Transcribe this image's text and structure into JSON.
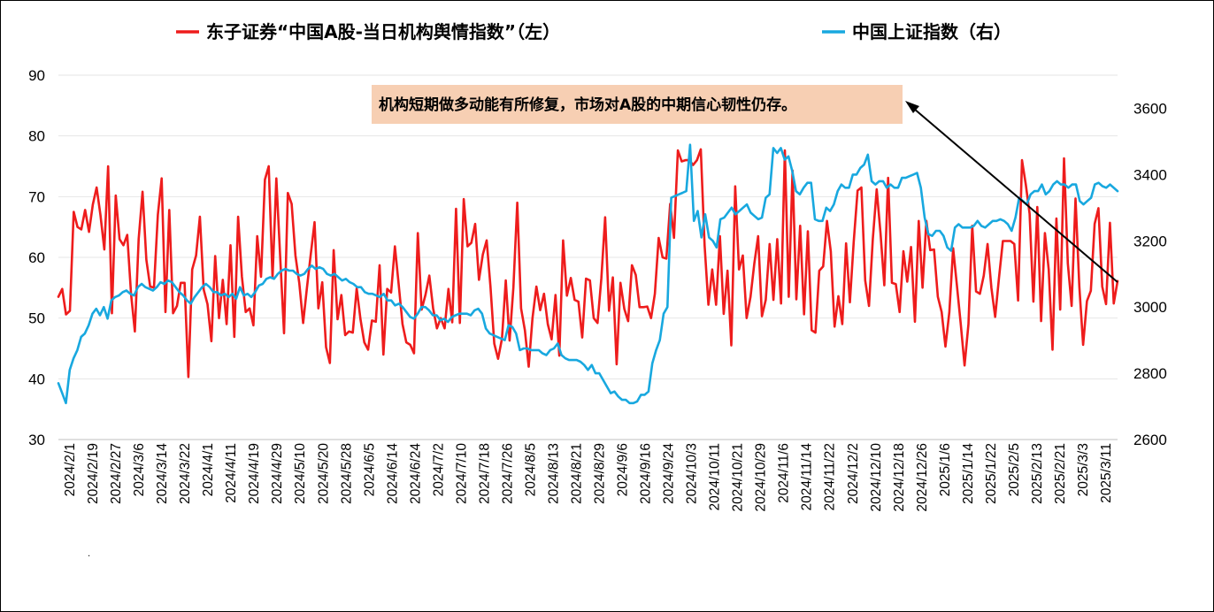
{
  "colors": {
    "sentiment": "#ee1c1c",
    "shanghai": "#18a8df",
    "annotation_bg": "#f7cfb3",
    "grid": "#e6e6e6"
  },
  "chart_data": {
    "type": "line",
    "title": "",
    "legend": {
      "position": "top",
      "entries": [
        "东子证券“中国A股-当日机构舆情指数”（左）",
        "中国上证指数（右）"
      ]
    },
    "x_tick_labels": [
      "2024/2/1",
      "2024/2/19",
      "2024/2/27",
      "2024/3/6",
      "2024/3/14",
      "2024/3/22",
      "2024/4/1",
      "2024/4/11",
      "2024/4/19",
      "2024/4/29",
      "2024/5/10",
      "2024/5/20",
      "2024/5/28",
      "2024/6/5",
      "2024/6/14",
      "2024/6/24",
      "2024/7/2",
      "2024/7/10",
      "2024/7/18",
      "2024/7/26",
      "2024/8/5",
      "2024/8/13",
      "2024/8/21",
      "2024/8/29",
      "2024/9/6",
      "2024/9/16",
      "2024/9/24",
      "2024/10/3",
      "2024/10/11",
      "2024/10/21",
      "2024/10/29",
      "2024/11/6",
      "2024/11/14",
      "2024/11/22",
      "2024/12/2",
      "2024/12/10",
      "2024/12/18",
      "2024/12/26",
      "2025/1/6",
      "2025/1/14",
      "2025/1/22",
      "2025/2/5",
      "2025/2/13",
      "2025/2/21",
      "2025/3/3",
      "2025/3/11"
    ],
    "y_left": {
      "min": 30,
      "max": 90,
      "ticks": [
        30,
        40,
        50,
        60,
        70,
        80,
        90
      ]
    },
    "y_right": {
      "min": 2600,
      "max": 3700,
      "ticks": [
        2600,
        2800,
        3000,
        3200,
        3400,
        3600
      ]
    },
    "grid": "horizontal",
    "series": [
      {
        "name": "东子证券“中国A股-当日机构舆情指数”（左）",
        "axis": "left",
        "values": [
          53.5,
          54.8,
          50.6,
          51.2,
          67.5,
          65.0,
          64.6,
          67.8,
          64.2,
          68.7,
          71.5,
          67.0,
          61.3,
          75.0,
          50.8,
          70.2,
          63.0,
          62.0,
          63.7,
          54.0,
          47.8,
          63.0,
          70.8,
          59.6,
          55.2,
          55.0,
          67.0,
          73.0,
          51.0,
          67.8,
          50.8,
          52.0,
          55.8,
          55.8,
          40.3,
          58.0,
          60.3,
          66.7,
          54.7,
          52.3,
          46.2,
          60.2,
          50.0,
          56.3,
          49.0,
          62.0,
          46.9,
          66.7,
          56.8,
          51.0,
          51.6,
          48.8,
          63.5,
          56.8,
          72.8,
          75.0,
          56.6,
          73.0,
          60.2,
          47.5,
          70.6,
          68.8,
          60.3,
          55.8,
          49.2,
          55.0,
          60.5,
          65.8,
          51.6,
          55.9,
          45.2,
          42.6,
          61.2,
          49.8,
          53.8,
          47.2,
          47.8,
          47.6,
          54.9,
          49.8,
          46.0,
          44.8,
          49.6,
          49.4,
          58.7,
          44.0,
          54.8,
          54.2,
          61.8,
          55.5,
          49.0,
          46.0,
          45.6,
          44.2,
          64.0,
          51.4,
          53.8,
          57.0,
          51.6,
          48.3,
          50.0,
          48.3,
          54.8,
          49.3,
          68.0,
          49.2,
          69.6,
          61.8,
          62.4,
          65.5,
          56.3,
          60.5,
          62.8,
          55.2,
          45.8,
          43.3,
          46.6,
          56.2,
          46.3,
          55.0,
          69.0,
          51.6,
          48.0,
          42.0,
          50.0,
          55.2,
          51.3,
          54.0,
          49.0,
          46.5,
          53.8,
          43.8,
          62.8,
          53.7,
          56.6,
          53.0,
          52.7,
          46.8,
          56.5,
          56.2,
          50.0,
          49.2,
          56.5,
          66.6,
          51.2,
          56.7,
          42.4,
          55.8,
          51.5,
          49.5,
          58.7,
          57.1,
          51.8,
          51.8,
          51.9,
          50.0,
          54.0,
          63.2,
          60.0,
          59.8,
          68.8,
          63.2,
          77.6,
          75.8,
          76.0,
          76.0,
          75.2,
          76.0,
          77.8,
          62.0,
          52.2,
          58.0,
          52.2,
          63.5,
          50.7,
          57.8,
          45.5,
          71.7,
          58.0,
          60.3,
          50.0,
          53.5,
          59.0,
          63.5,
          50.3,
          53.0,
          62.2,
          53.0,
          63.0,
          52.4,
          77.6,
          53.5,
          74.3,
          53.1,
          65.2,
          50.6,
          64.3,
          48.0,
          47.6,
          57.8,
          58.5,
          66.0,
          61.0,
          48.6,
          53.6,
          49.0,
          62.3,
          52.6,
          62.5,
          71.0,
          71.5,
          56.2,
          52.0,
          63.0,
          71.2,
          64.0,
          55.4,
          73.1,
          55.8,
          55.6,
          51.0,
          61.0,
          56.0,
          61.7,
          49.4,
          66.0,
          55.0,
          66.0,
          61.2,
          61.3,
          53.5,
          51.0,
          45.3,
          51.0,
          61.5,
          55.3,
          49.0,
          42.2,
          49.0,
          65.2,
          54.4,
          54.0,
          57.0,
          62.2,
          55.0,
          50.2,
          56.6,
          62.7,
          62.7,
          62.7,
          62.2,
          52.9,
          76.0,
          72.0,
          67.2,
          52.7,
          68.3,
          49.5,
          64.0,
          58.0,
          44.8,
          66.4,
          51.4,
          76.3,
          59.0,
          52.0,
          69.7,
          55.2,
          45.6,
          52.8,
          54.5,
          65.5,
          68.1,
          55.2,
          52.3,
          65.7,
          52.4,
          56.1
        ]
      },
      {
        "name": "中国上证指数（右）",
        "axis": "right",
        "values": [
          2770,
          2740,
          2710,
          2810,
          2845,
          2870,
          2910,
          2920,
          2945,
          2980,
          2995,
          2975,
          3000,
          2965,
          3020,
          3030,
          3035,
          3045,
          3050,
          3040,
          3035,
          3060,
          3070,
          3060,
          3055,
          3050,
          3060,
          3075,
          3070,
          3080,
          3075,
          3060,
          3045,
          3035,
          3020,
          3010,
          3030,
          3045,
          3060,
          3070,
          3060,
          3045,
          3045,
          3035,
          3040,
          3030,
          3040,
          3025,
          3060,
          3035,
          3040,
          3030,
          3045,
          3065,
          3070,
          3085,
          3090,
          3085,
          3100,
          3110,
          3115,
          3110,
          3110,
          3100,
          3095,
          3100,
          3115,
          3125,
          3115,
          3120,
          3115,
          3100,
          3095,
          3100,
          3090,
          3080,
          3085,
          3075,
          3070,
          3060,
          3060,
          3045,
          3040,
          3040,
          3035,
          3030,
          3040,
          3020,
          3020,
          3005,
          3010,
          3000,
          2985,
          2970,
          2965,
          2980,
          3000,
          3000,
          2990,
          2975,
          2975,
          2960,
          2965,
          2955,
          2970,
          2975,
          2980,
          2980,
          2980,
          2975,
          2990,
          2995,
          2980,
          2935,
          2920,
          2915,
          2910,
          2905,
          2900,
          2945,
          2940,
          2920,
          2870,
          2875,
          2875,
          2870,
          2870,
          2870,
          2860,
          2855,
          2870,
          2875,
          2890,
          2855,
          2845,
          2840,
          2840,
          2840,
          2835,
          2825,
          2810,
          2825,
          2800,
          2800,
          2780,
          2760,
          2740,
          2745,
          2730,
          2720,
          2720,
          2710,
          2710,
          2715,
          2735,
          2735,
          2745,
          2830,
          2870,
          2900,
          2980,
          3000,
          3330,
          3335,
          3340,
          3345,
          3350,
          3490,
          3260,
          3290,
          3210,
          3280,
          3210,
          3200,
          3180,
          3265,
          3270,
          3285,
          3300,
          3280,
          3290,
          3300,
          3310,
          3285,
          3275,
          3265,
          3270,
          3330,
          3340,
          3480,
          3465,
          3480,
          3445,
          3455,
          3410,
          3350,
          3340,
          3360,
          3375,
          3375,
          3265,
          3260,
          3260,
          3300,
          3290,
          3310,
          3350,
          3370,
          3360,
          3360,
          3400,
          3400,
          3420,
          3430,
          3460,
          3380,
          3370,
          3380,
          3380,
          3360,
          3370,
          3360,
          3360,
          3390,
          3390,
          3395,
          3400,
          3405,
          3360,
          3270,
          3220,
          3215,
          3230,
          3230,
          3215,
          3180,
          3170,
          3240,
          3250,
          3240,
          3240,
          3240,
          3245,
          3260,
          3245,
          3240,
          3250,
          3260,
          3260,
          3265,
          3260,
          3250,
          3230,
          3270,
          3330,
          3320,
          3310,
          3340,
          3350,
          3350,
          3370,
          3340,
          3350,
          3370,
          3380,
          3370,
          3370,
          3360,
          3370,
          3370,
          3320,
          3310,
          3320,
          3330,
          3370,
          3375,
          3365,
          3360,
          3370,
          3360,
          3350
        ]
      }
    ],
    "annotation": {
      "text": "机构短期做多动能有所修复，市场对A股的中期信心韧性仍存。"
    }
  }
}
